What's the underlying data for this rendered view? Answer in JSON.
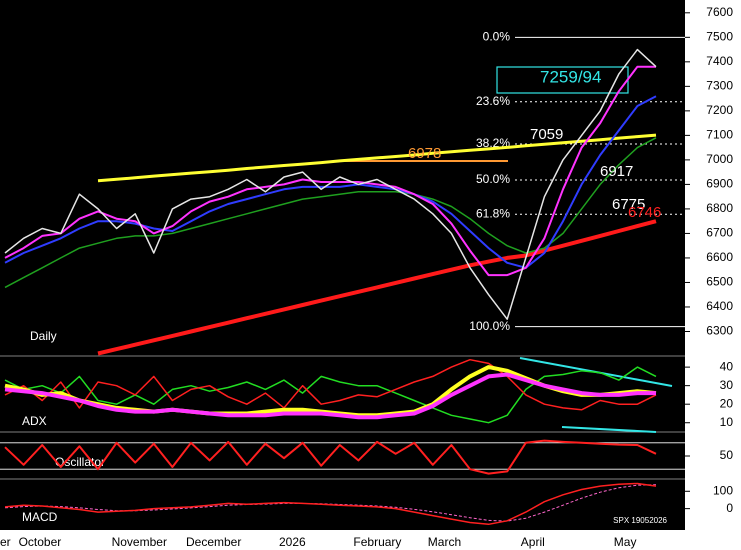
{
  "chart_data": [
    {
      "type": "line",
      "label": "Daily",
      "footer": "SPX 19052026",
      "categories": [
        "er",
        "October",
        null,
        null,
        null,
        null,
        "November",
        null,
        null,
        null,
        "December",
        null,
        null,
        null,
        null,
        "2026",
        null,
        null,
        null,
        "February",
        null,
        null,
        null,
        "March",
        null,
        null,
        null,
        null,
        "April",
        null,
        null,
        null,
        null,
        "May",
        null,
        null
      ],
      "ylim": [
        6200,
        7640
      ],
      "yticks": [
        6300,
        6400,
        6500,
        6600,
        6700,
        6800,
        6900,
        7000,
        7100,
        7200,
        7300,
        7400,
        7500,
        7600
      ],
      "series": [
        {
          "color": "#ff1a1a",
          "width": 4,
          "values": [
            null,
            null,
            null,
            null,
            null,
            6210,
            6228,
            6246,
            6264,
            6282,
            6300,
            6318,
            6336,
            6354,
            6372,
            6390,
            6408,
            6426,
            6444,
            6462,
            6480,
            6498,
            6516,
            6534,
            6552,
            6570,
            6585,
            6600,
            6610,
            6630,
            6650,
            6670,
            6690,
            6710,
            6730,
            6750
          ]
        },
        {
          "color": "#ffff33",
          "width": 3,
          "values": [
            null,
            null,
            null,
            null,
            null,
            6915,
            6921,
            6927,
            6934,
            6940,
            6946,
            6952,
            6958,
            6965,
            6971,
            6977,
            6983,
            6989,
            6996,
            7002,
            7008,
            7014,
            7020,
            7027,
            7033,
            7039,
            7045,
            7051,
            7058,
            7064,
            7070,
            7076,
            7082,
            7089,
            7095,
            7101
          ]
        },
        {
          "color": "#1fa01f",
          "width": 1.5,
          "values": [
            6480,
            6520,
            6560,
            6600,
            6640,
            6660,
            6680,
            6690,
            6690,
            6700,
            6720,
            6740,
            6760,
            6780,
            6800,
            6820,
            6840,
            6850,
            6860,
            6870,
            6870,
            6870,
            6860,
            6840,
            6810,
            6760,
            6700,
            6650,
            6620,
            6640,
            6700,
            6800,
            6900,
            6980,
            7050,
            7090
          ]
        },
        {
          "color": "#2f3cff",
          "width": 2,
          "values": [
            6580,
            6620,
            6650,
            6680,
            6720,
            6750,
            6750,
            6740,
            6720,
            6710,
            6750,
            6790,
            6820,
            6840,
            6860,
            6880,
            6890,
            6890,
            6890,
            6900,
            6890,
            6880,
            6860,
            6830,
            6780,
            6710,
            6640,
            6580,
            6560,
            6620,
            6750,
            6900,
            7020,
            7120,
            7220,
            7260
          ]
        },
        {
          "color": "#ff33ff",
          "width": 2,
          "values": [
            6600,
            6640,
            6690,
            6700,
            6760,
            6790,
            6760,
            6750,
            6700,
            6730,
            6790,
            6830,
            6850,
            6880,
            6890,
            6900,
            6920,
            6910,
            6910,
            6910,
            6900,
            6890,
            6860,
            6820,
            6740,
            6630,
            6530,
            6530,
            6560,
            6680,
            6880,
            7050,
            7150,
            7280,
            7380,
            7380
          ]
        },
        {
          "color": "#e6e6e6",
          "width": 1.5,
          "values": [
            6620,
            6680,
            6720,
            6700,
            6860,
            6800,
            6720,
            6780,
            6620,
            6800,
            6840,
            6850,
            6880,
            6920,
            6870,
            6930,
            6950,
            6880,
            6930,
            6900,
            6920,
            6880,
            6840,
            6780,
            6700,
            6560,
            6450,
            6350,
            6600,
            6850,
            7000,
            7100,
            7200,
            7350,
            7450,
            7380
          ]
        }
      ],
      "fib_levels": [
        {
          "label": "0.0%",
          "value": 7500
        },
        {
          "label": "23.6%",
          "value": 7237
        },
        {
          "label": "38.2%",
          "value": 7065
        },
        {
          "label": "50.0%",
          "value": 6918
        },
        {
          "label": "61.8%",
          "value": 6778
        },
        {
          "label": "100.0%",
          "value": 6320
        }
      ],
      "annotations": [
        {
          "text": "7259/94",
          "color": "#33e6e6"
        },
        {
          "text": "7059",
          "color": "#ffffff"
        },
        {
          "text": "6917",
          "color": "#ffffff"
        },
        {
          "text": "6775",
          "color": "#ffffff"
        },
        {
          "text": "6746",
          "color": "#ff2020"
        },
        {
          "text": "6978",
          "color": "#ff9933"
        }
      ]
    },
    {
      "type": "line",
      "label": "ADX",
      "ylim": [
        5,
        46
      ],
      "yticks": [
        10,
        20,
        30,
        40
      ],
      "series": [
        {
          "color": "#22dd22",
          "width": 1.5,
          "values": [
            33,
            28,
            30,
            26,
            35,
            22,
            20,
            25,
            20,
            28,
            30,
            27,
            29,
            32,
            28,
            33,
            26,
            35,
            32,
            30,
            30,
            26,
            22,
            18,
            14,
            12,
            10,
            14,
            28,
            35,
            36,
            38,
            37,
            33,
            40,
            35
          ]
        },
        {
          "color": "#ff2020",
          "width": 1.5,
          "values": [
            25,
            30,
            22,
            32,
            18,
            32,
            30,
            25,
            35,
            22,
            28,
            30,
            24,
            20,
            26,
            18,
            30,
            20,
            22,
            25,
            24,
            28,
            32,
            35,
            40,
            44,
            42,
            35,
            25,
            20,
            18,
            17,
            22,
            20,
            20,
            25
          ]
        },
        {
          "color": "#ffff22",
          "width": 4,
          "values": [
            30,
            28,
            25,
            26,
            22,
            20,
            18,
            17,
            16,
            17,
            16,
            15,
            15,
            15,
            16,
            17,
            17,
            16,
            15,
            14,
            14,
            15,
            16,
            20,
            28,
            35,
            40,
            38,
            34,
            30,
            27,
            25,
            25,
            26,
            27,
            26
          ]
        },
        {
          "color": "#ff33ff",
          "width": 4,
          "values": [
            28,
            27,
            26,
            24,
            22,
            19,
            17,
            16,
            16,
            17,
            16,
            15,
            14,
            14,
            14,
            15,
            15,
            15,
            14,
            13,
            13,
            14,
            15,
            19,
            25,
            30,
            35,
            36,
            33,
            30,
            28,
            26,
            25,
            25,
            26,
            26
          ]
        }
      ]
    },
    {
      "type": "line",
      "label": "Oscillator",
      "ylim": [
        0,
        100
      ],
      "yticks": [
        50
      ],
      "levels": [
        20,
        80
      ],
      "series": [
        {
          "color": "#ff2020",
          "width": 2,
          "values": [
            70,
            30,
            75,
            25,
            72,
            20,
            80,
            35,
            78,
            25,
            80,
            40,
            82,
            30,
            78,
            45,
            80,
            28,
            75,
            40,
            82,
            55,
            80,
            30,
            75,
            20,
            10,
            15,
            80,
            85,
            82,
            80,
            78,
            76,
            75,
            55
          ]
        }
      ]
    },
    {
      "type": "line",
      "label": "MACD",
      "ylim": [
        -100,
        165
      ],
      "yticks": [
        0,
        100
      ],
      "series": [
        {
          "color": "#ff66cc",
          "width": 1,
          "dash": true,
          "values": [
            5,
            12,
            15,
            12,
            5,
            -5,
            -12,
            -12,
            -8,
            -2,
            4,
            12,
            20,
            24,
            26,
            30,
            30,
            28,
            24,
            20,
            15,
            8,
            -4,
            -18,
            -35,
            -52,
            -68,
            -72,
            -55,
            -20,
            20,
            60,
            95,
            120,
            135,
            138
          ]
        },
        {
          "color": "#ff2020",
          "width": 1.5,
          "values": [
            10,
            20,
            15,
            5,
            -5,
            -20,
            -15,
            -10,
            0,
            5,
            10,
            20,
            30,
            25,
            30,
            35,
            30,
            25,
            20,
            15,
            10,
            0,
            -20,
            -40,
            -60,
            -80,
            -90,
            -70,
            -20,
            40,
            80,
            110,
            130,
            140,
            145,
            130
          ]
        }
      ]
    }
  ]
}
